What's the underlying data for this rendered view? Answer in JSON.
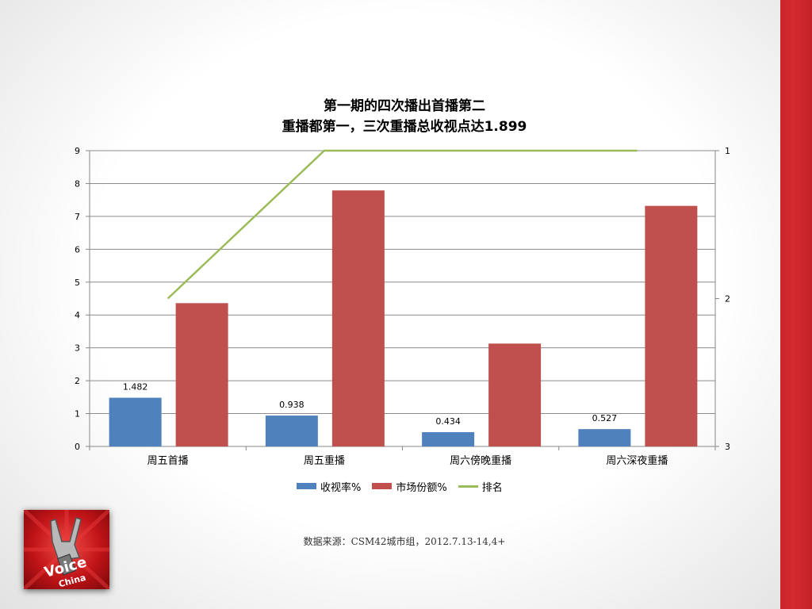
{
  "chart_data": {
    "type": "bar",
    "title_line1": "第一期的四次播出首播第二",
    "title_line2": "重播都第一，三次重播总收视点达1.899",
    "categories": [
      "周五首播",
      "周五重播",
      "周六傍晚重播",
      "周六深夜重播"
    ],
    "series": [
      {
        "name": "收视率%",
        "values": [
          1.482,
          0.938,
          0.434,
          0.527
        ],
        "color": "#4f81bd",
        "data_labels": [
          "1.482",
          "0.938",
          "0.434",
          "0.527"
        ]
      },
      {
        "name": "市场份额%",
        "values": [
          4.36,
          7.79,
          3.13,
          7.32
        ],
        "color": "#c0504d"
      },
      {
        "name": "排名",
        "type": "line",
        "axis": "secondary",
        "values": [
          2,
          1,
          1,
          1
        ],
        "color": "#9bbb59"
      }
    ],
    "ylim": [
      0,
      9
    ],
    "yticks": [
      "0",
      "1",
      "2",
      "3",
      "4",
      "5",
      "6",
      "7",
      "8",
      "9"
    ],
    "y2lim": [
      3,
      1
    ],
    "y2ticks": [
      "1",
      "2",
      "3"
    ],
    "y2_reversed": true,
    "grid": true,
    "legend_position": "bottom"
  },
  "source": "数据来源：CSM42城市组，2012.7.13-14,4+",
  "logo_text": "中国好声音 The Voice of China",
  "colors": {
    "accent_bar": "#d42a30"
  }
}
